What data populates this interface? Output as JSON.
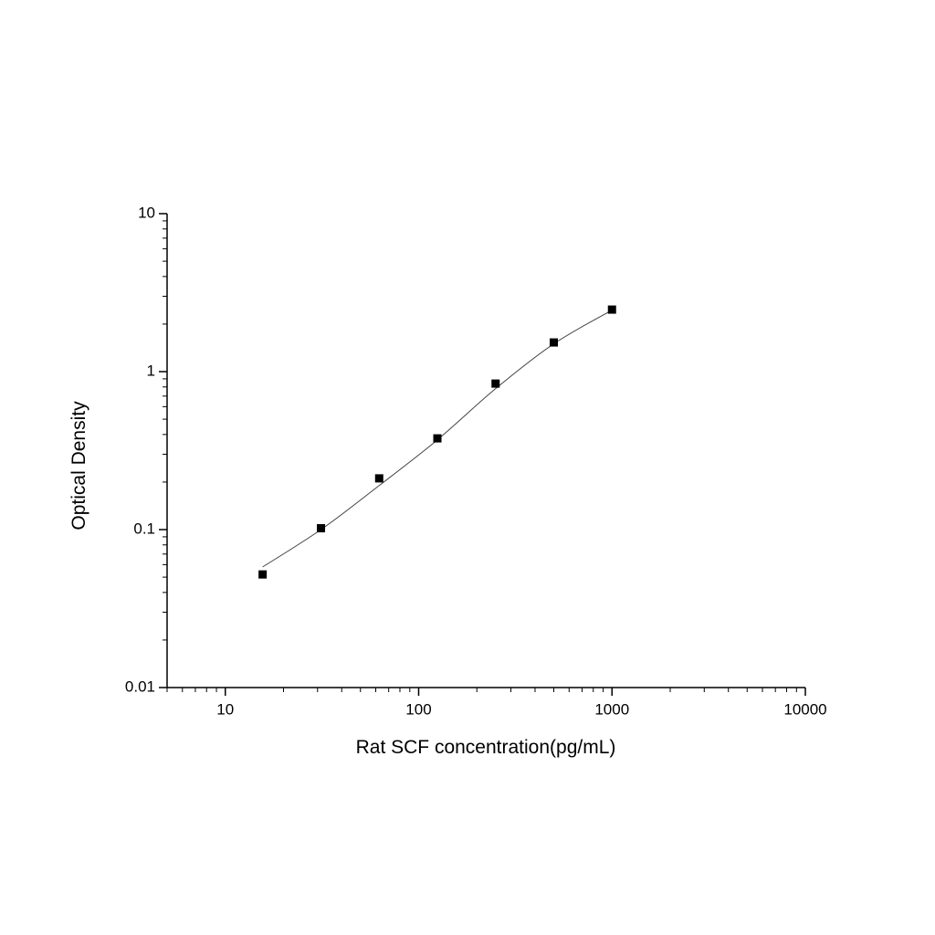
{
  "chart_data": {
    "type": "scatter",
    "x_label": "Rat SCF concentration(pg/mL)",
    "y_label": "Optical Density",
    "x": [
      15.6,
      31.25,
      62.5,
      125,
      250,
      500,
      1000
    ],
    "values": [
      0.052,
      0.102,
      0.211,
      0.378,
      0.84,
      1.53,
      2.47
    ],
    "color": "#000000",
    "fit_x": [
      15.6,
      31.25,
      62.5,
      125,
      250,
      500,
      1000
    ],
    "fit_values": [
      0.058,
      0.1,
      0.19,
      0.37,
      0.78,
      1.5,
      2.45
    ],
    "fit_color": "#444444",
    "xscale": "log",
    "yscale": "log",
    "xlim": [
      5,
      10000
    ],
    "ylim": [
      0.01,
      10
    ],
    "xticks": [
      10,
      100,
      1000,
      10000
    ],
    "yticks": [
      0.01,
      0.1,
      1,
      10
    ],
    "minor_ticks": true
  }
}
